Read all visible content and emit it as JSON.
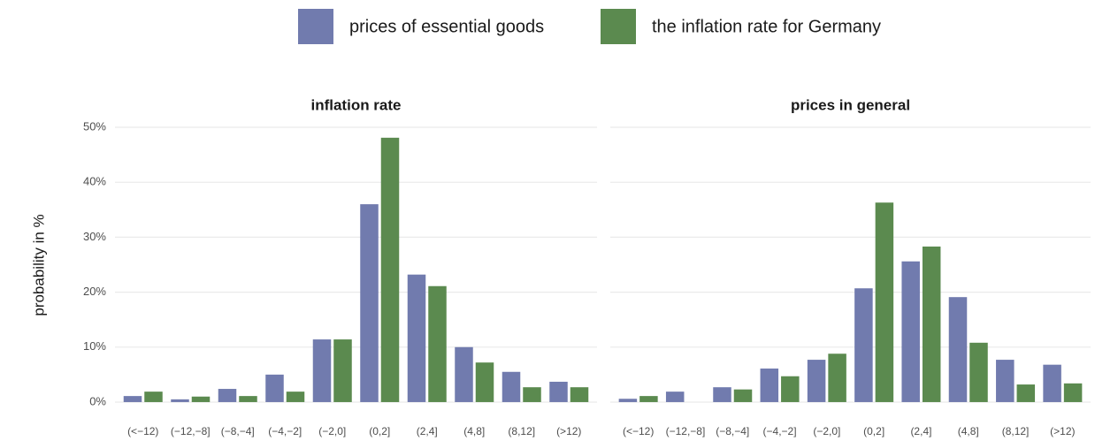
{
  "chart_data": [
    {
      "type": "bar",
      "title": "inflation rate",
      "ylabel": "probability in %",
      "categories": [
        "(<−12)",
        "(−12,−8]",
        "(−8,−4]",
        "(−4,−2]",
        "(−2,0]",
        "(0,2]",
        "(2,4]",
        "(4,8]",
        "(8,12]",
        "(>12)"
      ],
      "series": [
        {
          "name": "prices of essential goods",
          "color": "#717bae",
          "values": [
            1.1,
            0.5,
            2.4,
            5.0,
            11.4,
            36.0,
            23.2,
            10.0,
            5.5,
            3.7
          ]
        },
        {
          "name": "the inflation rate for Germany",
          "color": "#5b8a4f",
          "values": [
            1.9,
            1.0,
            1.1,
            1.9,
            11.4,
            48.1,
            21.1,
            7.2,
            2.7,
            2.7
          ]
        }
      ],
      "ylim": [
        -2,
        51.5
      ],
      "yticks": [
        {
          "value": 0,
          "label": "0%"
        },
        {
          "value": 10,
          "label": "10%"
        },
        {
          "value": 20,
          "label": "20%"
        },
        {
          "value": 30,
          "label": "30%"
        },
        {
          "value": 40,
          "label": "40%"
        },
        {
          "value": 50,
          "label": "50%"
        }
      ],
      "grid": true
    },
    {
      "type": "bar",
      "title": "prices in general",
      "categories": [
        "(<−12)",
        "(−12,−8]",
        "(−8,−4]",
        "(−4,−2]",
        "(−2,0]",
        "(0,2]",
        "(2,4]",
        "(4,8]",
        "(8,12]",
        "(>12)"
      ],
      "series": [
        {
          "color": "#717bae",
          "values": [
            0.6,
            1.9,
            2.7,
            6.1,
            7.7,
            20.7,
            25.6,
            19.1,
            7.7,
            6.8
          ]
        },
        {
          "color": "#5b8a4f",
          "values": [
            1.1,
            0,
            2.3,
            4.7,
            8.8,
            36.3,
            28.3,
            10.8,
            3.2,
            3.4
          ]
        }
      ],
      "ylim": [
        -2,
        51.5
      ],
      "yticks": [
        0,
        10,
        20,
        30,
        40,
        50
      ],
      "grid": true
    }
  ]
}
